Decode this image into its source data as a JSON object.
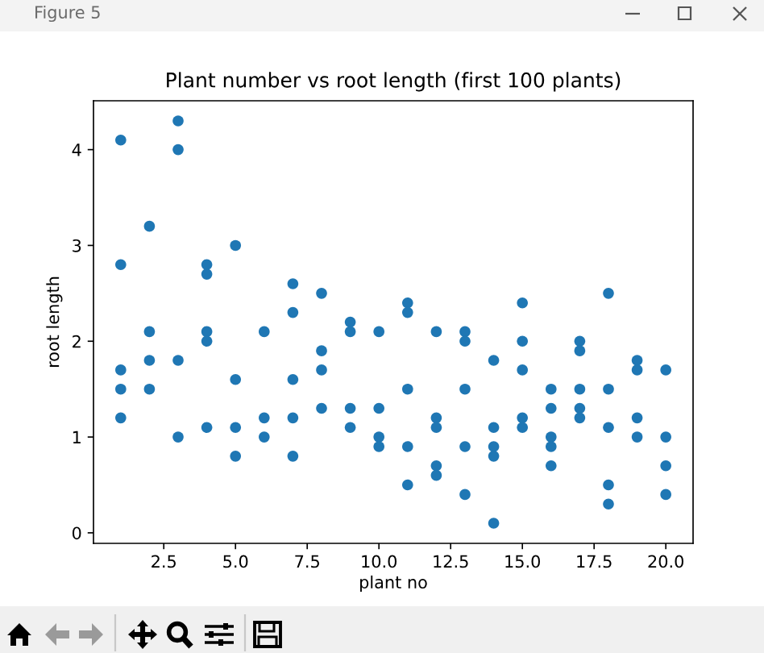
{
  "chart_data": {
    "type": "scatter",
    "title": "Plant number vs root length (first 100 plants)",
    "xlabel": "plant no",
    "ylabel": "root length",
    "annotations": [
      "Figure 5"
    ],
    "x": [
      1,
      1,
      1,
      1,
      1,
      2,
      2,
      2,
      2,
      3,
      3,
      3,
      3,
      4,
      4,
      4,
      4,
      4,
      5,
      5,
      5,
      5,
      6,
      6,
      6,
      7,
      7,
      7,
      7,
      7,
      8,
      8,
      8,
      8,
      9,
      9,
      9,
      9,
      10,
      10,
      10,
      10,
      11,
      11,
      11,
      11,
      11,
      12,
      12,
      12,
      12,
      12,
      13,
      13,
      13,
      13,
      13,
      14,
      14,
      14,
      14,
      14,
      15,
      15,
      15,
      15,
      15,
      16,
      16,
      16,
      16,
      16,
      17,
      17,
      17,
      17,
      17,
      18,
      18,
      18,
      18,
      18,
      19,
      19,
      19,
      19,
      20,
      20,
      20,
      20
    ],
    "values": [
      4.1,
      2.8,
      1.7,
      1.5,
      1.2,
      3.2,
      2.1,
      1.8,
      1.5,
      4.3,
      4.0,
      1.8,
      1.0,
      2.8,
      2.7,
      2.1,
      2.0,
      1.1,
      3.0,
      1.6,
      1.1,
      0.8,
      2.1,
      1.2,
      1.0,
      2.6,
      2.3,
      1.6,
      1.2,
      0.8,
      2.5,
      1.9,
      1.7,
      1.3,
      2.2,
      2.1,
      1.3,
      1.1,
      2.1,
      1.3,
      1.0,
      0.9,
      2.4,
      2.3,
      1.5,
      0.9,
      0.5,
      2.1,
      1.2,
      1.1,
      0.7,
      0.6,
      2.1,
      2.0,
      1.5,
      0.9,
      0.4,
      1.8,
      1.1,
      0.9,
      0.8,
      0.1,
      2.4,
      2.0,
      1.7,
      1.2,
      1.1,
      1.5,
      1.3,
      1.0,
      0.9,
      0.7,
      2.0,
      1.9,
      1.5,
      1.3,
      1.2,
      2.5,
      1.5,
      1.1,
      0.5,
      0.3,
      1.8,
      1.7,
      1.2,
      1.0,
      1.7,
      1.0,
      0.7,
      0.4
    ],
    "color": "#1f77b4",
    "marker": "circle",
    "xlim": [
      0.05,
      20.95
    ],
    "ylim": [
      -0.11,
      4.51
    ],
    "xticks": [
      2.5,
      {
        "value": 5,
        "label": "5.0"
      },
      7.5,
      {
        "value": 10,
        "label": "10.0"
      },
      12.5,
      {
        "value": 15,
        "label": "15.0"
      },
      17.5,
      {
        "value": 20,
        "label": "20.0"
      }
    ],
    "yticks": [
      0,
      1,
      2,
      3,
      4
    ]
  }
}
